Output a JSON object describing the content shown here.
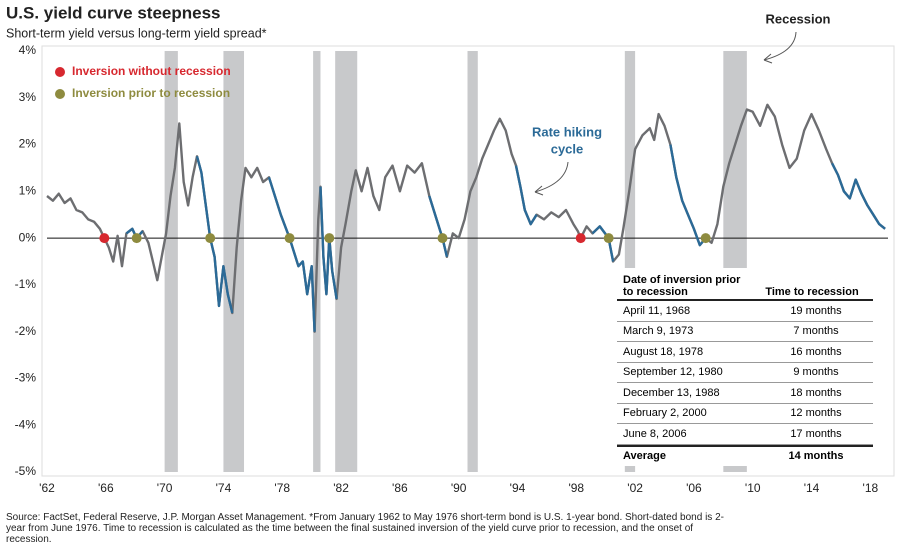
{
  "chart_data": {
    "type": "line",
    "title": "U.S. yield curve steepness",
    "subtitle": "Short-term yield versus long-term yield spread*",
    "x": [
      1962.0,
      1962.4,
      1962.8,
      1963.2,
      1963.6,
      1964.0,
      1964.4,
      1964.8,
      1965.2,
      1965.6,
      1965.9,
      1966.2,
      1966.5,
      1966.8,
      1967.1,
      1967.4,
      1967.8,
      1968.1,
      1968.5,
      1968.9,
      1969.2,
      1969.5,
      1969.8,
      1970.1,
      1970.4,
      1970.7,
      1971.0,
      1971.3,
      1971.6,
      1971.9,
      1972.2,
      1972.5,
      1972.8,
      1973.1,
      1973.4,
      1973.7,
      1974.0,
      1974.3,
      1974.6,
      1974.9,
      1975.2,
      1975.5,
      1975.9,
      1976.3,
      1976.7,
      1977.1,
      1977.5,
      1977.9,
      1978.2,
      1978.5,
      1978.8,
      1979.1,
      1979.4,
      1979.7,
      1980.0,
      1980.2,
      1980.45,
      1980.6,
      1980.8,
      1981.0,
      1981.2,
      1981.4,
      1981.7,
      1982.0,
      1982.3,
      1982.7,
      1983.0,
      1983.4,
      1983.8,
      1984.2,
      1984.6,
      1985.0,
      1985.5,
      1986.0,
      1986.5,
      1987.0,
      1987.5,
      1988.0,
      1988.5,
      1988.9,
      1989.2,
      1989.6,
      1990.0,
      1990.4,
      1990.8,
      1991.2,
      1991.6,
      1992.0,
      1992.4,
      1992.8,
      1993.2,
      1993.6,
      1993.9,
      1994.2,
      1994.5,
      1994.9,
      1995.3,
      1995.8,
      1996.3,
      1996.8,
      1997.3,
      1997.8,
      1998.1,
      1998.3,
      1998.7,
      1999.1,
      1999.6,
      2000.2,
      2000.5,
      2000.9,
      2001.2,
      2001.6,
      2002.0,
      2002.5,
      2003.0,
      2003.3,
      2003.6,
      2004.0,
      2004.4,
      2004.8,
      2005.2,
      2005.6,
      2006.0,
      2006.4,
      2006.8,
      2007.2,
      2007.6,
      2008.0,
      2008.4,
      2008.8,
      2009.2,
      2009.6,
      2010.0,
      2010.5,
      2011.0,
      2011.5,
      2012.0,
      2012.5,
      2013.0,
      2013.5,
      2014.0,
      2014.5,
      2015.0,
      2015.4,
      2015.8,
      2016.2,
      2016.6,
      2017.0,
      2017.4,
      2017.8,
      2018.2,
      2018.6,
      2019.0
    ],
    "values": [
      0.9,
      0.8,
      0.95,
      0.75,
      0.85,
      0.6,
      0.55,
      0.4,
      0.35,
      0.2,
      0,
      -0.2,
      -0.5,
      0.05,
      -0.6,
      0.1,
      0.2,
      0,
      0.15,
      -0.1,
      -0.5,
      -0.9,
      -0.4,
      0.1,
      0.9,
      1.5,
      2.45,
      1.2,
      0.7,
      1.3,
      1.75,
      1.4,
      0.7,
      0,
      -0.4,
      -1.45,
      -0.6,
      -1.2,
      -1.6,
      -0.2,
      0.8,
      1.5,
      1.3,
      1.5,
      1.2,
      1.3,
      0.9,
      0.5,
      0.25,
      0,
      -0.3,
      -0.6,
      -0.5,
      -1.2,
      -0.6,
      -2.0,
      0.4,
      1.1,
      -0.4,
      -1.2,
      0,
      -0.7,
      -1.3,
      -0.2,
      0.3,
      1.0,
      1.45,
      1.0,
      1.5,
      0.9,
      0.6,
      1.3,
      1.55,
      1.0,
      1.55,
      1.4,
      1.6,
      0.9,
      0.4,
      0,
      -0.4,
      0.1,
      0,
      0.4,
      1.0,
      1.3,
      1.7,
      2.0,
      2.3,
      2.55,
      2.3,
      1.8,
      1.55,
      1.1,
      0.6,
      0.3,
      0.5,
      0.4,
      0.55,
      0.45,
      0.6,
      0.3,
      0.15,
      0,
      0.25,
      0.1,
      0.25,
      0,
      -0.5,
      -0.35,
      0.2,
      1.0,
      1.9,
      2.2,
      2.35,
      2.1,
      2.65,
      2.4,
      2.0,
      1.3,
      0.8,
      0.5,
      0.2,
      -0.15,
      0,
      -0.1,
      0.3,
      1.1,
      1.6,
      2.0,
      2.4,
      2.75,
      2.7,
      2.4,
      2.85,
      2.6,
      2.0,
      1.5,
      1.7,
      2.3,
      2.65,
      2.3,
      1.9,
      1.6,
      1.35,
      1.0,
      0.85,
      1.25,
      0.95,
      0.7,
      0.5,
      0.3,
      0.2
    ],
    "color": "#6d6e71",
    "hiking_cycles": {
      "color": "#2b6a97",
      "label": [
        "Rate hiking",
        "cycle"
      ],
      "ranges": [
        [
          1967.4,
          1968.5
        ],
        [
          1972.2,
          1974.6
        ],
        [
          1977.1,
          1980.2
        ],
        [
          1980.6,
          1981.7
        ],
        [
          1988.0,
          1989.2
        ],
        [
          1993.9,
          1995.3
        ],
        [
          1999.1,
          2000.5
        ],
        [
          2004.4,
          2006.8
        ],
        [
          2015.4,
          2019.0
        ]
      ]
    },
    "recessions": {
      "label": "Recession",
      "color": "#c8c9cb",
      "ranges": [
        [
          1970.0,
          1970.9
        ],
        [
          1974.0,
          1975.4
        ],
        [
          1980.1,
          1980.6
        ],
        [
          1981.6,
          1983.1
        ],
        [
          1990.6,
          1991.3
        ],
        [
          2001.3,
          2002.0
        ],
        [
          2008.0,
          2009.6
        ]
      ]
    },
    "markers": [
      {
        "name": "Inversion without recession",
        "color": "#d7282f",
        "x": [
          1965.9,
          1998.3
        ]
      },
      {
        "name": "Inversion prior to recession",
        "color": "#8e8b3f",
        "x": [
          1968.1,
          1973.1,
          1978.5,
          1981.2,
          1988.9,
          2000.2,
          2006.8
        ]
      }
    ],
    "xlim": [
      1962,
      2019.2
    ],
    "xticks": [
      {
        "value": 1962,
        "label": "'62"
      },
      {
        "value": 1966,
        "label": "'66"
      },
      {
        "value": 1970,
        "label": "'70"
      },
      {
        "value": 1974,
        "label": "'74"
      },
      {
        "value": 1978,
        "label": "'78"
      },
      {
        "value": 1982,
        "label": "'82"
      },
      {
        "value": 1986,
        "label": "'86"
      },
      {
        "value": 1990,
        "label": "'90"
      },
      {
        "value": 1994,
        "label": "'94"
      },
      {
        "value": 1998,
        "label": "'98"
      },
      {
        "value": 2002,
        "label": "'02"
      },
      {
        "value": 2006,
        "label": "'06"
      },
      {
        "value": 2010,
        "label": "'10"
      },
      {
        "value": 2014,
        "label": "'14"
      },
      {
        "value": 2018,
        "label": "'18"
      }
    ],
    "ylim": [
      -5,
      4
    ],
    "yticks": [
      {
        "value": 4,
        "label": "4%"
      },
      {
        "value": 3,
        "label": "3%"
      },
      {
        "value": 2,
        "label": "2%"
      },
      {
        "value": 1,
        "label": "1%"
      },
      {
        "value": 0,
        "label": "0%"
      },
      {
        "value": -1,
        "label": "-1%"
      },
      {
        "value": -2,
        "label": "-2%"
      },
      {
        "value": -3,
        "label": "-3%"
      },
      {
        "value": -4,
        "label": "-4%"
      },
      {
        "value": -5,
        "label": "-5%"
      }
    ],
    "table": {
      "header": [
        "Date of inversion prior to recession",
        "Time to recession"
      ],
      "rows": [
        [
          "April 11, 1968",
          "19 months"
        ],
        [
          "March 9, 1973",
          "7 months"
        ],
        [
          "August 18, 1978",
          "16 months"
        ],
        [
          "September 12, 1980",
          "9 months"
        ],
        [
          "December 13, 1988",
          "18 months"
        ],
        [
          "February 2, 2000",
          "12 months"
        ],
        [
          "June 8, 2006",
          "17 months"
        ]
      ],
      "footer": [
        "Average",
        "14 months"
      ]
    },
    "source": "Source: FactSet, Federal Reserve, J.P. Morgan Asset Management. *From January 1962 to May 1976 short-term bond is U.S. 1-year bond. Short-dated bond is 2-year from June 1976. Time to recession is calculated as the time between the final sustained inversion of the yield curve prior to recession, and the onset of recession."
  }
}
